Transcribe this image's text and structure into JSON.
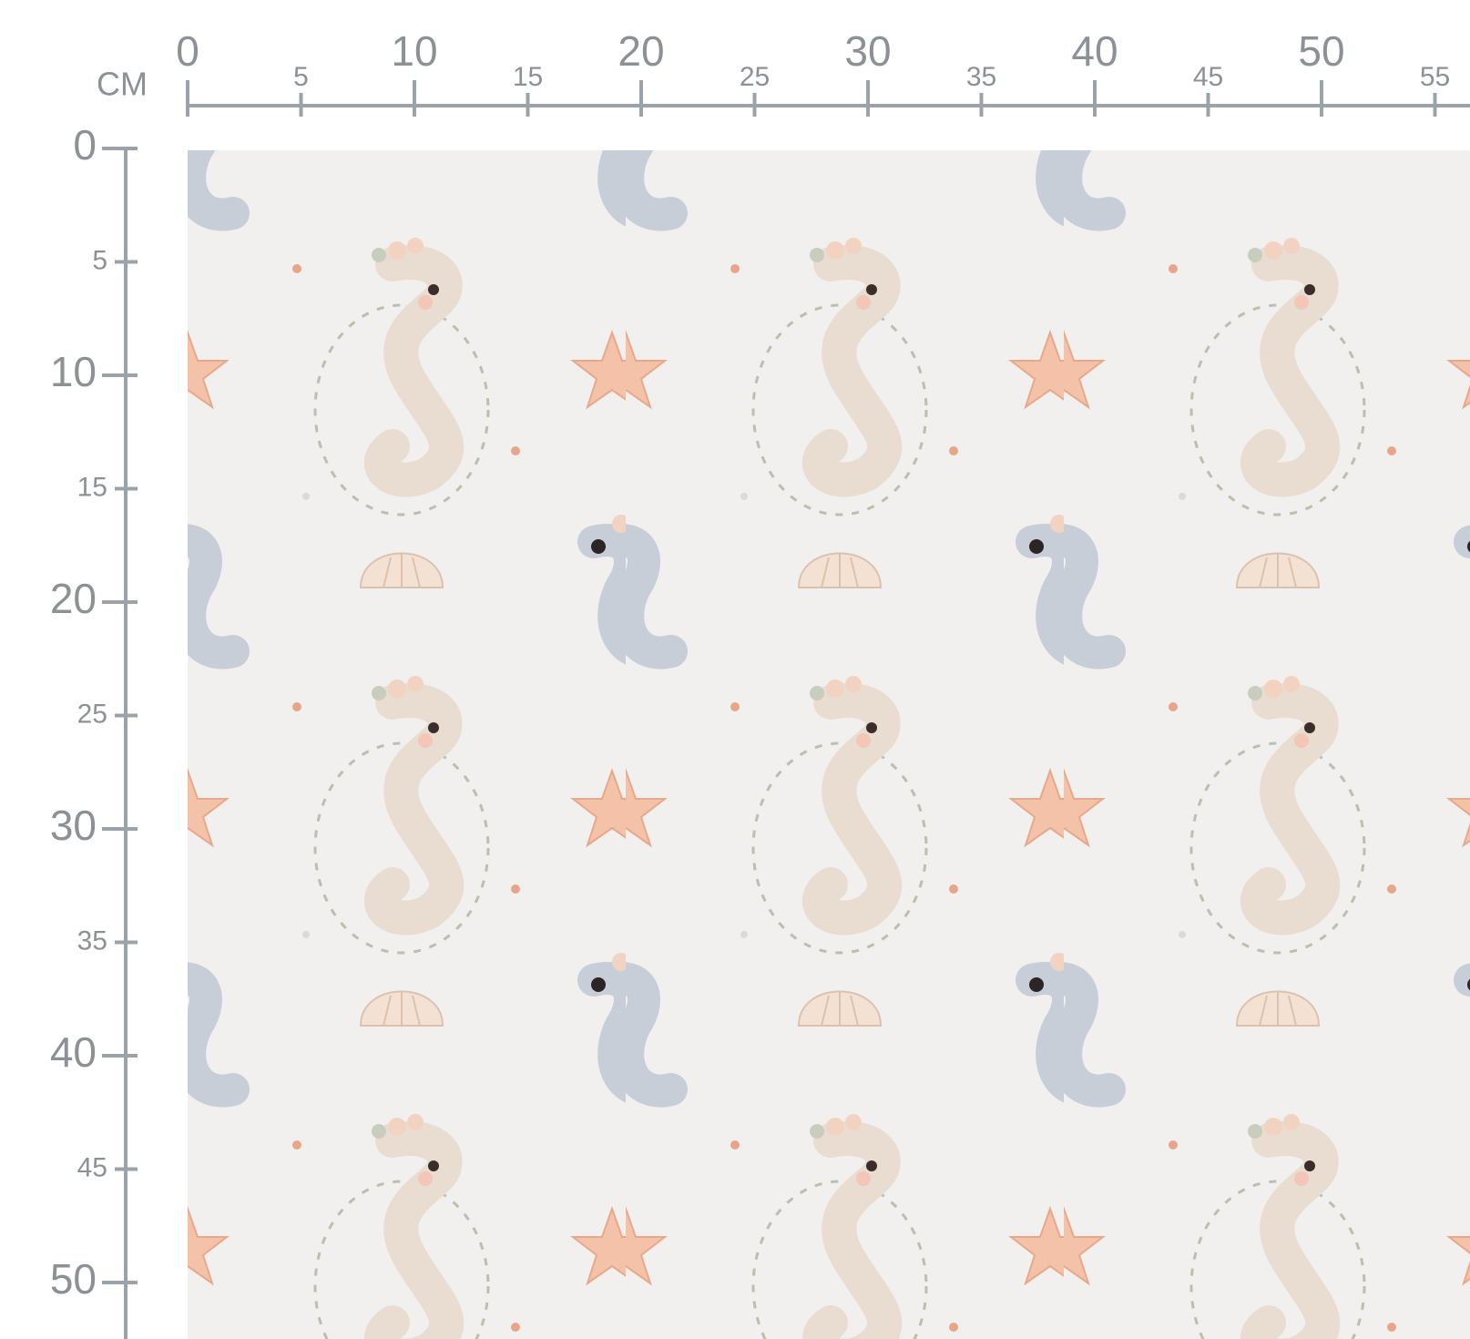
{
  "ruler": {
    "unit": "CM",
    "top_ticks": [
      0,
      5,
      10,
      15,
      20,
      25,
      30,
      35,
      40,
      45,
      50,
      55
    ],
    "left_ticks": [
      0,
      5,
      10,
      15,
      20,
      25,
      30,
      35,
      40,
      45,
      50
    ]
  }
}
